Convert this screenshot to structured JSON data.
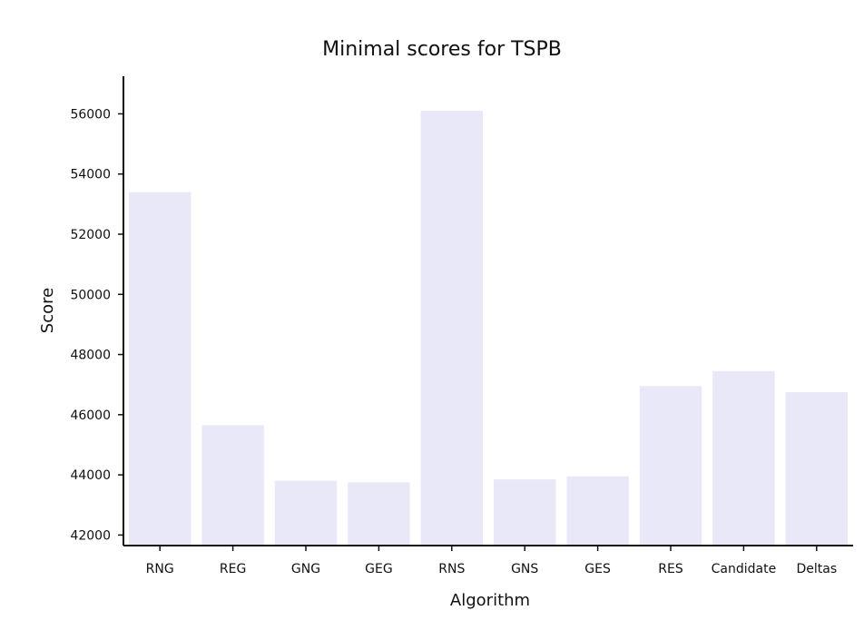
{
  "chart_data": {
    "type": "bar",
    "title": "Minimal scores for TSPB",
    "xlabel": "Algorithm",
    "ylabel": "Score",
    "categories": [
      "RNG",
      "REG",
      "GNG",
      "GEG",
      "RNS",
      "GNS",
      "GES",
      "RES",
      "Candidate",
      "Deltas"
    ],
    "values": [
      53400,
      45650,
      43800,
      43750,
      56100,
      43850,
      43950,
      46950,
      47450,
      46750
    ],
    "ylim": [
      41650,
      57250
    ],
    "yticks": [
      42000,
      44000,
      46000,
      48000,
      50000,
      52000,
      54000,
      56000
    ],
    "ytick_labels": [
      "42000",
      "44000",
      "46000",
      "48000",
      "50000",
      "52000",
      "54000",
      "56000"
    ],
    "bar_color": "#e8e8f8",
    "axis_color": "#111111",
    "grid": false,
    "legend": false
  }
}
